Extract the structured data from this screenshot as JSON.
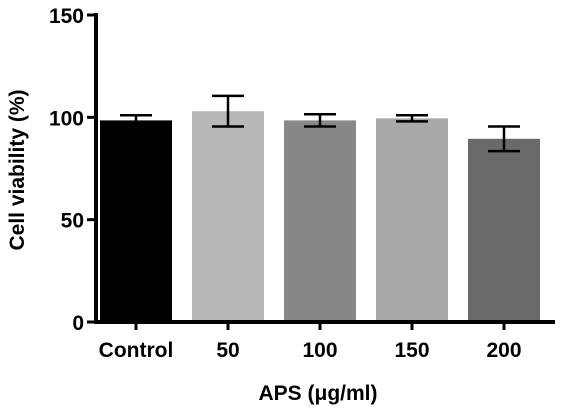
{
  "chart_data": {
    "type": "bar",
    "title": "",
    "xlabel": "APS (μg/ml)",
    "ylabel": "Cell viability (%)",
    "ylim": [
      0,
      150
    ],
    "yticks": [
      0,
      50,
      100,
      150
    ],
    "grid": false,
    "legend": "none",
    "categories": [
      "Control",
      "50",
      "100",
      "150",
      "200"
    ],
    "values": [
      98.5,
      103,
      98.5,
      99.5,
      89.5
    ],
    "error": [
      2.5,
      7.5,
      3,
      1.5,
      6
    ],
    "colors": [
      "#000000",
      "#b8b8b8",
      "#878787",
      "#a8a8a8",
      "#6a6a6a"
    ]
  }
}
